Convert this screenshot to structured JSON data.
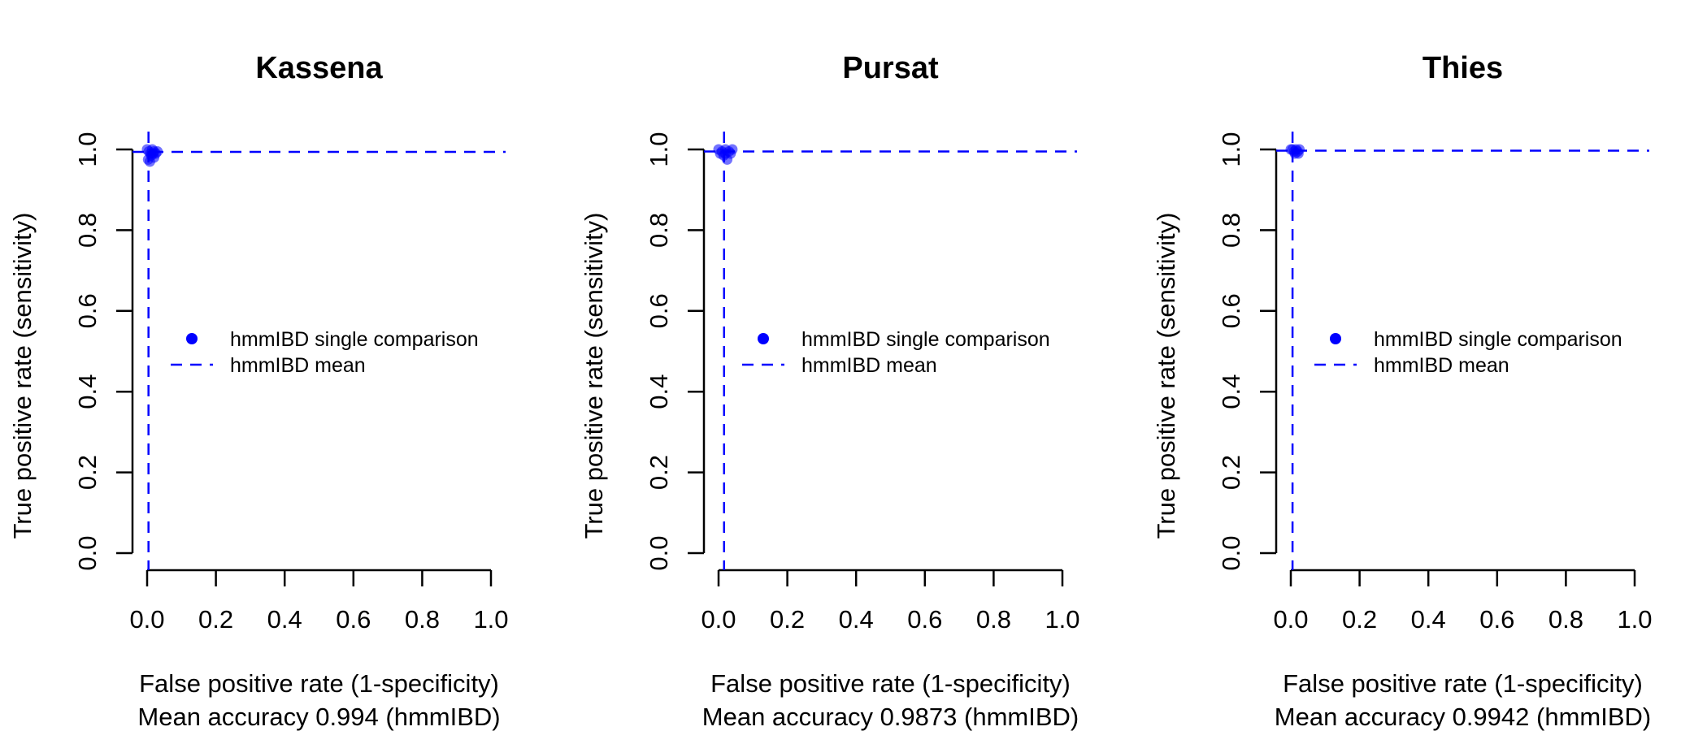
{
  "chart_data": [
    {
      "type": "scatter",
      "title": "Kassena",
      "xlabel": "False positive rate (1-specificity)",
      "ylabel": "True positive rate (sensitivity)",
      "accuracy_text": "Mean accuracy 0.994 (hmmIBD)",
      "xlim": [
        0,
        1
      ],
      "ylim": [
        0,
        1
      ],
      "x_ticks": [
        "0.0",
        "0.2",
        "0.4",
        "0.6",
        "0.8",
        "1.0"
      ],
      "y_ticks": [
        "0.0",
        "0.2",
        "0.4",
        "0.6",
        "0.8",
        "1.0"
      ],
      "legend": {
        "position": "center-left",
        "entries": [
          {
            "label": "hmmIBD single comparison",
            "style": "point"
          },
          {
            "label": "hmmIBD mean",
            "style": "dashed-line"
          }
        ]
      },
      "mean_fpr": 0.004,
      "mean_tpr": 0.994,
      "series": [
        {
          "name": "hmmIBD single comparison",
          "points": [
            {
              "x": 0.0,
              "y": 1.0
            },
            {
              "x": 0.005,
              "y": 0.995
            },
            {
              "x": 0.01,
              "y": 0.99
            },
            {
              "x": 0.015,
              "y": 1.0
            },
            {
              "x": 0.02,
              "y": 0.995
            },
            {
              "x": 0.025,
              "y": 0.99
            },
            {
              "x": 0.003,
              "y": 0.975
            },
            {
              "x": 0.012,
              "y": 0.985
            },
            {
              "x": 0.02,
              "y": 0.98
            },
            {
              "x": 0.008,
              "y": 0.97
            },
            {
              "x": 0.03,
              "y": 0.995
            },
            {
              "x": 0.018,
              "y": 0.99
            }
          ]
        }
      ],
      "color": "#0000ff"
    },
    {
      "type": "scatter",
      "title": "Pursat",
      "xlabel": "False positive rate (1-specificity)",
      "ylabel": "True positive rate (sensitivity)",
      "accuracy_text": "Mean accuracy 0.9873 (hmmIBD)",
      "xlim": [
        0,
        1
      ],
      "ylim": [
        0,
        1
      ],
      "x_ticks": [
        "0.0",
        "0.2",
        "0.4",
        "0.6",
        "0.8",
        "1.0"
      ],
      "y_ticks": [
        "0.0",
        "0.2",
        "0.4",
        "0.6",
        "0.8",
        "1.0"
      ],
      "legend": {
        "position": "center-left",
        "entries": [
          {
            "label": "hmmIBD single comparison",
            "style": "point"
          },
          {
            "label": "hmmIBD mean",
            "style": "dashed-line"
          }
        ]
      },
      "mean_fpr": 0.016,
      "mean_tpr": 0.995,
      "series": [
        {
          "name": "hmmIBD single comparison",
          "points": [
            {
              "x": 0.0,
              "y": 1.0
            },
            {
              "x": 0.01,
              "y": 0.995
            },
            {
              "x": 0.02,
              "y": 1.0
            },
            {
              "x": 0.03,
              "y": 0.995
            },
            {
              "x": 0.04,
              "y": 1.0
            },
            {
              "x": 0.015,
              "y": 0.985
            },
            {
              "x": 0.025,
              "y": 0.975
            },
            {
              "x": 0.035,
              "y": 0.99
            },
            {
              "x": 0.005,
              "y": 0.99
            },
            {
              "x": 0.02,
              "y": 0.99
            }
          ]
        }
      ],
      "color": "#0000ff"
    },
    {
      "type": "scatter",
      "title": "Thies",
      "xlabel": "False positive rate (1-specificity)",
      "ylabel": "True positive rate (sensitivity)",
      "accuracy_text": "Mean accuracy 0.9942 (hmmIBD)",
      "xlim": [
        0,
        1
      ],
      "ylim": [
        0,
        1
      ],
      "x_ticks": [
        "0.0",
        "0.2",
        "0.4",
        "0.6",
        "0.8",
        "1.0"
      ],
      "y_ticks": [
        "0.0",
        "0.2",
        "0.4",
        "0.6",
        "0.8",
        "1.0"
      ],
      "legend": {
        "position": "center-left",
        "entries": [
          {
            "label": "hmmIBD single comparison",
            "style": "point"
          },
          {
            "label": "hmmIBD mean",
            "style": "dashed-line"
          }
        ]
      },
      "mean_fpr": 0.005,
      "mean_tpr": 0.997,
      "series": [
        {
          "name": "hmmIBD single comparison",
          "points": [
            {
              "x": 0.0,
              "y": 1.0
            },
            {
              "x": 0.005,
              "y": 1.0
            },
            {
              "x": 0.01,
              "y": 0.995
            },
            {
              "x": 0.015,
              "y": 1.0
            },
            {
              "x": 0.02,
              "y": 0.995
            },
            {
              "x": 0.025,
              "y": 1.0
            },
            {
              "x": 0.012,
              "y": 0.99
            },
            {
              "x": 0.022,
              "y": 0.99
            }
          ]
        }
      ],
      "color": "#0000ff"
    }
  ]
}
